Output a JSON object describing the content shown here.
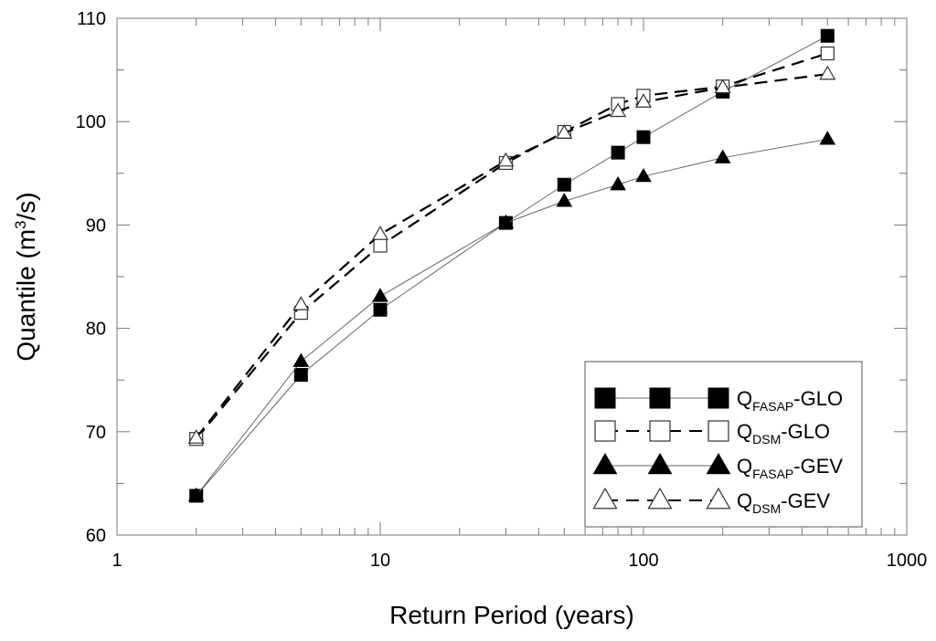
{
  "chart_data": {
    "type": "line",
    "xlabel": "Return Period (years)",
    "ylabel_main": "Quantile (m",
    "ylabel_sup": "3",
    "ylabel_tail": "/s)",
    "xscale": "log",
    "xlim": [
      1,
      1000
    ],
    "ylim": [
      60,
      110
    ],
    "x_ticks": [
      1,
      10,
      100,
      1000
    ],
    "x_tick_labels": [
      "1",
      "10",
      "100",
      "1000"
    ],
    "y_ticks": [
      60,
      70,
      80,
      90,
      100,
      110
    ],
    "y_tick_labels": [
      "60",
      "70",
      "80",
      "90",
      "100",
      "110"
    ],
    "grid": false,
    "legend_position": "bottom-right",
    "series": [
      {
        "name": "FASAP-GLO",
        "name_prefix": "Q",
        "name_sub": "FASAP",
        "name_suffix": "-GLO",
        "marker": "square-filled",
        "line": "solid-thin",
        "x": [
          2,
          5,
          10,
          30,
          50,
          80,
          100,
          200,
          500
        ],
        "y": [
          63.8,
          75.5,
          81.8,
          90.2,
          93.9,
          97.0,
          98.5,
          102.9,
          108.3
        ]
      },
      {
        "name": "DSM-GLO",
        "name_prefix": "Q",
        "name_sub": "DSM",
        "name_suffix": "-GLO",
        "marker": "square-open",
        "line": "dashed",
        "x": [
          2,
          5,
          10,
          30,
          50,
          80,
          100,
          200,
          500
        ],
        "y": [
          69.3,
          81.5,
          88.0,
          96.0,
          99.0,
          101.7,
          102.5,
          103.4,
          106.6
        ]
      },
      {
        "name": "FASAP-GEV",
        "name_prefix": "Q",
        "name_sub": "FASAP",
        "name_suffix": "-GEV",
        "marker": "triangle-filled",
        "line": "solid-thin",
        "x": [
          2,
          5,
          10,
          30,
          50,
          80,
          100,
          200,
          500
        ],
        "y": [
          63.8,
          76.8,
          83.1,
          90.2,
          92.3,
          93.9,
          94.7,
          96.5,
          98.3
        ]
      },
      {
        "name": "DSM-GEV",
        "name_prefix": "Q",
        "name_sub": "DSM",
        "name_suffix": "-GEV",
        "marker": "triangle-open",
        "line": "dashed",
        "x": [
          2,
          5,
          10,
          30,
          50,
          80,
          100,
          200,
          500
        ],
        "y": [
          69.4,
          82.3,
          89.1,
          96.2,
          98.9,
          101.0,
          101.9,
          103.3,
          104.6
        ]
      }
    ]
  }
}
